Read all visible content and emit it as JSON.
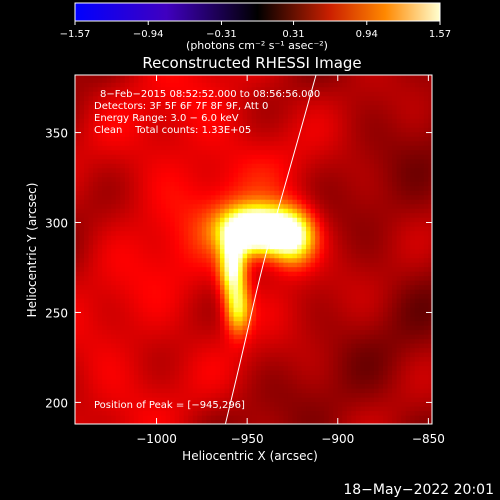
{
  "chart_data": {
    "type": "heatmap",
    "title": "Reconstructed RHESSI Image",
    "xlabel": "Heliocentric X (arcsec)",
    "ylabel": "Heliocentric Y (arcsec)",
    "xlim": [
      -1045,
      -848
    ],
    "ylim": [
      188,
      382
    ],
    "x_ticks": [
      -1000,
      -950,
      -900,
      -850
    ],
    "x_tick_labels": [
      "−1000",
      "−950",
      "−900",
      "−850"
    ],
    "y_ticks": [
      200,
      250,
      300,
      350
    ],
    "y_tick_labels": [
      "200",
      "250",
      "300",
      "350"
    ],
    "colorbar": {
      "range": [
        -1.57,
        1.57
      ],
      "ticks": [
        -1.57,
        -0.94,
        -0.31,
        0.31,
        0.94,
        1.57
      ],
      "tick_labels": [
        "−1.57",
        "−0.94",
        "−0.31",
        "0.31",
        "0.94",
        "1.57"
      ],
      "units_label": "(photons cm⁻² s⁻¹ asec⁻²)",
      "colormap": "hot-diverging"
    },
    "annotations": [
      "8−Feb−2015 08:52:52.000 to 08:56:56.000",
      "Detectors: 3F 5F 6F 7F 8F 9F, Att 0",
      "Energy Range: 3.0 − 6.0 keV",
      "Clean    Total counts: 1.33E+05"
    ],
    "peak_label": "Position of Peak = [−945,296]",
    "peak": {
      "x": -945,
      "y": 296,
      "value": 1.57
    },
    "sources": [
      {
        "x": -945,
        "y": 296,
        "sx": 13,
        "sy": 9,
        "amp": 1.0
      },
      {
        "x": -925,
        "y": 292,
        "sx": 9,
        "sy": 11,
        "amp": 0.62
      },
      {
        "x": -958,
        "y": 275,
        "sx": 5,
        "sy": 12,
        "amp": 0.62
      },
      {
        "x": -955,
        "y": 252,
        "sx": 5,
        "sy": 10,
        "amp": 0.45
      },
      {
        "x": -975,
        "y": 320,
        "sx": 45,
        "sy": 70,
        "amp": 0.18
      },
      {
        "x": -1030,
        "y": 210,
        "sx": 30,
        "sy": 35,
        "amp": 0.12
      }
    ],
    "limb_curve": [
      [
        -962,
        188
      ],
      [
        -952,
        230
      ],
      [
        -943,
        270
      ],
      [
        -935,
        300
      ],
      [
        -925,
        335
      ],
      [
        -912,
        382
      ]
    ]
  },
  "footer": {
    "timestamp": "18−May−2022 20:01"
  }
}
